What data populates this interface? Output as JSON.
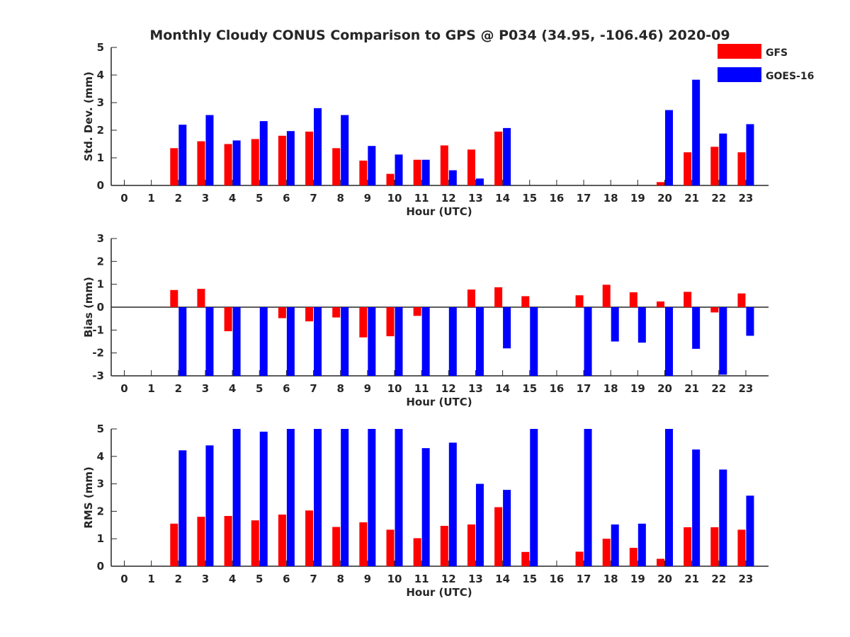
{
  "figure_title": "Monthly Cloudy CONUS Comparison to GPS @ P034 (34.95, -106.46) 2020-09",
  "legend": [
    {
      "name": "GFS",
      "color": "#ff0000"
    },
    {
      "name": "GOES-16",
      "color": "#0000ff"
    }
  ],
  "chart_data": [
    {
      "type": "bar",
      "xlabel": "Hour (UTC)",
      "ylabel": "Std. Dev. (mm)",
      "ylim": [
        0,
        5
      ],
      "yticks": [
        0,
        1,
        2,
        3,
        4,
        5
      ],
      "categories": [
        "0",
        "1",
        "2",
        "3",
        "4",
        "5",
        "6",
        "7",
        "8",
        "9",
        "10",
        "11",
        "12",
        "13",
        "14",
        "15",
        "16",
        "17",
        "18",
        "19",
        "20",
        "21",
        "22",
        "23"
      ],
      "series": [
        {
          "name": "GFS",
          "color": "#ff0000",
          "values": [
            null,
            null,
            1.35,
            1.6,
            1.5,
            1.68,
            1.8,
            1.95,
            1.35,
            0.9,
            0.42,
            0.93,
            1.45,
            1.3,
            1.95,
            null,
            null,
            null,
            null,
            null,
            0.12,
            1.2,
            1.4,
            1.2
          ]
        },
        {
          "name": "GOES-16",
          "color": "#0000ff",
          "values": [
            null,
            null,
            2.2,
            2.55,
            1.63,
            2.33,
            1.97,
            2.8,
            2.55,
            1.43,
            1.12,
            0.93,
            0.55,
            0.25,
            2.08,
            null,
            null,
            null,
            null,
            null,
            2.73,
            3.83,
            1.88,
            2.22
          ]
        }
      ]
    },
    {
      "type": "bar",
      "xlabel": "Hour (UTC)",
      "ylabel": "Bias (mm)",
      "ylim": [
        -3,
        3
      ],
      "yticks": [
        -3,
        -2,
        -1,
        0,
        1,
        2,
        3
      ],
      "categories": [
        "0",
        "1",
        "2",
        "3",
        "4",
        "5",
        "6",
        "7",
        "8",
        "9",
        "10",
        "11",
        "12",
        "13",
        "14",
        "15",
        "16",
        "17",
        "18",
        "19",
        "20",
        "21",
        "22",
        "23"
      ],
      "series": [
        {
          "name": "GFS",
          "color": "#ff0000",
          "values": [
            null,
            null,
            0.75,
            0.8,
            -1.05,
            null,
            -0.48,
            -0.62,
            -0.45,
            -1.32,
            -1.27,
            -0.38,
            null,
            0.77,
            0.87,
            0.48,
            null,
            0.52,
            0.98,
            0.65,
            0.25,
            0.67,
            -0.23,
            0.6
          ]
        },
        {
          "name": "GOES-16",
          "color": "#0000ff",
          "values": [
            null,
            null,
            -3,
            -3,
            -3,
            -3,
            -3,
            -3,
            -3,
            -3,
            -3,
            -3,
            -3,
            -3,
            -1.8,
            -3,
            null,
            -3,
            -1.5,
            -1.55,
            -3,
            -1.82,
            -2.95,
            -1.25
          ]
        }
      ]
    },
    {
      "type": "bar",
      "xlabel": "Hour (UTC)",
      "ylabel": "RMS (mm)",
      "ylim": [
        0,
        5
      ],
      "yticks": [
        0,
        1,
        2,
        3,
        4,
        5
      ],
      "categories": [
        "0",
        "1",
        "2",
        "3",
        "4",
        "5",
        "6",
        "7",
        "8",
        "9",
        "10",
        "11",
        "12",
        "13",
        "14",
        "15",
        "16",
        "17",
        "18",
        "19",
        "20",
        "21",
        "22",
        "23"
      ],
      "series": [
        {
          "name": "GFS",
          "color": "#ff0000",
          "values": [
            null,
            null,
            1.55,
            1.8,
            1.83,
            1.67,
            1.88,
            2.03,
            1.43,
            1.6,
            1.33,
            1.02,
            1.47,
            1.52,
            2.15,
            0.52,
            null,
            0.53,
            1.0,
            0.67,
            0.27,
            1.42,
            1.42,
            1.33
          ]
        },
        {
          "name": "GOES-16",
          "color": "#0000ff",
          "values": [
            null,
            null,
            4.22,
            4.4,
            5,
            4.9,
            5,
            5,
            5,
            5,
            5,
            4.3,
            4.5,
            3.0,
            2.78,
            5,
            null,
            5,
            1.52,
            1.55,
            5,
            4.25,
            3.52,
            2.57
          ]
        }
      ]
    }
  ]
}
